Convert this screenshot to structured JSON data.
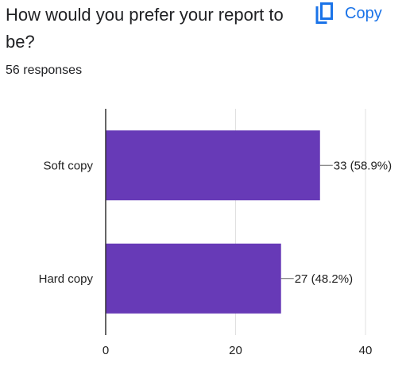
{
  "question": {
    "title": "How would you prefer your report to be?"
  },
  "copy": {
    "label": "Copy",
    "icon": "copy-icon"
  },
  "responses": {
    "text": "56 responses"
  },
  "colors": {
    "bar": "#673ab7",
    "accent": "#1a73e8",
    "grid": "#e0e0e0",
    "axis": "#333333"
  },
  "chart_data": {
    "type": "bar",
    "orientation": "horizontal",
    "categories": [
      "Soft copy",
      "Hard copy"
    ],
    "values": [
      33,
      27
    ],
    "labels": [
      "33 (58.9%)",
      "27 (48.2%)"
    ],
    "xlim": [
      0,
      40
    ],
    "xticks": [
      0,
      20,
      40
    ],
    "grid": true
  }
}
